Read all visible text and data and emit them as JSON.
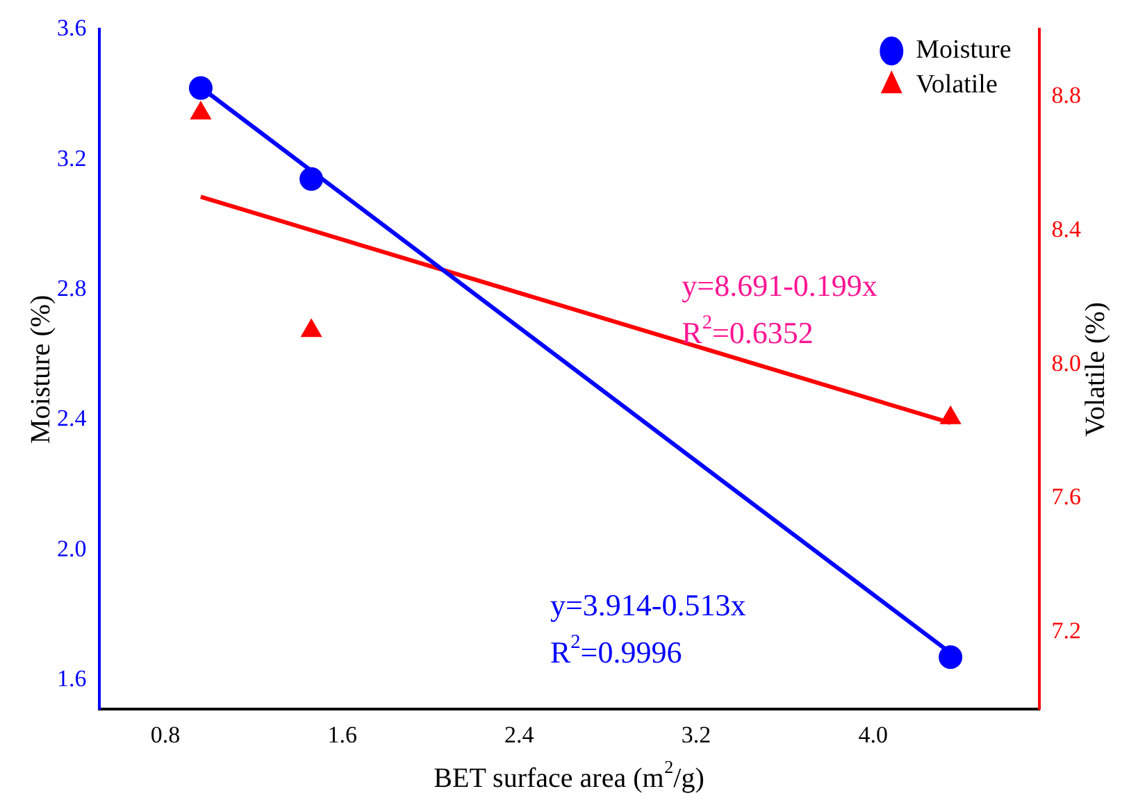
{
  "chart_data": {
    "type": "scatter",
    "xlabel": "BET surface area (m$^{2}$/g)",
    "ylabel": "Moisture (%)",
    "y2label": "Volatile (%)",
    "xlim": [
      0.5,
      4.75
    ],
    "xticks": [
      0.8,
      1.6,
      2.4,
      3.2,
      {
        "value": 4.0,
        "label": "4.0"
      }
    ],
    "ylim": [
      1.51,
      3.6
    ],
    "yticks": [
      1.6,
      {
        "value": 2.0,
        "label": "2.0"
      },
      2.4,
      2.8,
      3.2,
      3.6
    ],
    "y2lim": [
      6.97,
      9.0
    ],
    "y2ticks": [
      7.2,
      7.6,
      {
        "value": 8.0,
        "label": "8.0"
      },
      8.4,
      8.8
    ],
    "grid": false,
    "legend": "top right",
    "series": [
      {
        "name": "Moisture",
        "marker": "circle",
        "color": "#0000ff",
        "x": [
          0.96,
          1.46,
          4.35
        ],
        "values": [
          3.42,
          3.14,
          1.67
        ]
      },
      {
        "name": "Volatile",
        "marker": "triangle",
        "axis": "y2",
        "color": "#ff0000",
        "x": [
          0.96,
          1.46,
          4.35
        ],
        "values": [
          8.75,
          8.1,
          7.84
        ]
      },
      {
        "type": "line",
        "color": "#0000ff",
        "x": [
          0.96,
          4.35
        ],
        "values": [
          3.422,
          1.683
        ]
      },
      {
        "type": "line",
        "axis": "y2",
        "color": "#ff0000",
        "x": [
          0.96,
          4.35
        ],
        "values": [
          8.5,
          7.825
        ]
      }
    ],
    "annotations": [
      "y=8.691-0.199x",
      "R$^{2}$=0.6352",
      "y=3.914-0.513x",
      "R$^{2}$=0.9996"
    ]
  }
}
